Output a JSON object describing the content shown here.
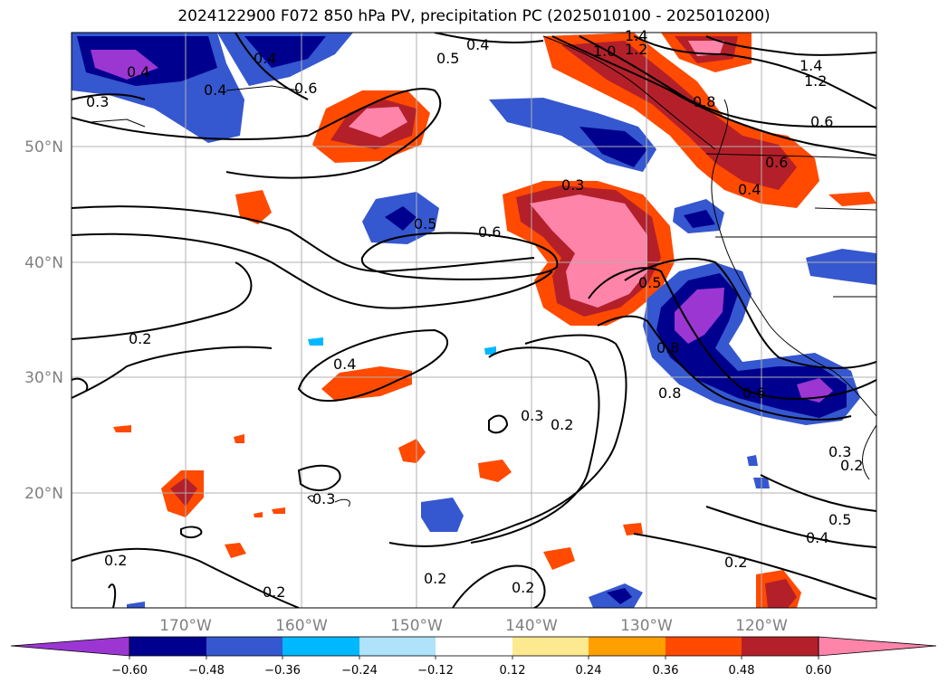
{
  "title": "2024122900 F072 850 hPa PV, precipitation PC (2025010100 - 2025010200)",
  "lon_labels": [
    "170°W",
    "160°W",
    "150°W",
    "140°W",
    "130°W",
    "120°W"
  ],
  "lat_labels": [
    "50°N",
    "40°N",
    "30°N",
    "20°N"
  ],
  "colorbar": {
    "ticks": [
      "−0.60",
      "−0.48",
      "−0.36",
      "−0.24",
      "−0.12",
      "0.12",
      "0.24",
      "0.36",
      "0.48",
      "0.60"
    ],
    "colors": [
      "#9b36d3",
      "#00008e",
      "#3557cf",
      "#00b8ff",
      "#aee3fb",
      "#ffffff",
      "#fde98f",
      "#ffa000",
      "#ff4a00",
      "#b3202a",
      "#ff84aa"
    ]
  },
  "contour_labels": [
    "0.4",
    "0.5",
    "0.4",
    "1.0",
    "1.2",
    "1.4",
    "1.4",
    "1.2",
    "0.6",
    "0.4",
    "0.3",
    "0.6",
    "0.4",
    "0.8",
    "0.6",
    "0.4",
    "0.3",
    "0.5",
    "0.6",
    "0.5",
    "0.2",
    "0.4",
    "0.8",
    "0.8",
    "0.6",
    "0.3",
    "0.2",
    "0.3",
    "0.3",
    "0.2",
    "0.5",
    "0.4",
    "0.2",
    "0.2",
    "0.2",
    "0.2",
    "0.2"
  ]
}
